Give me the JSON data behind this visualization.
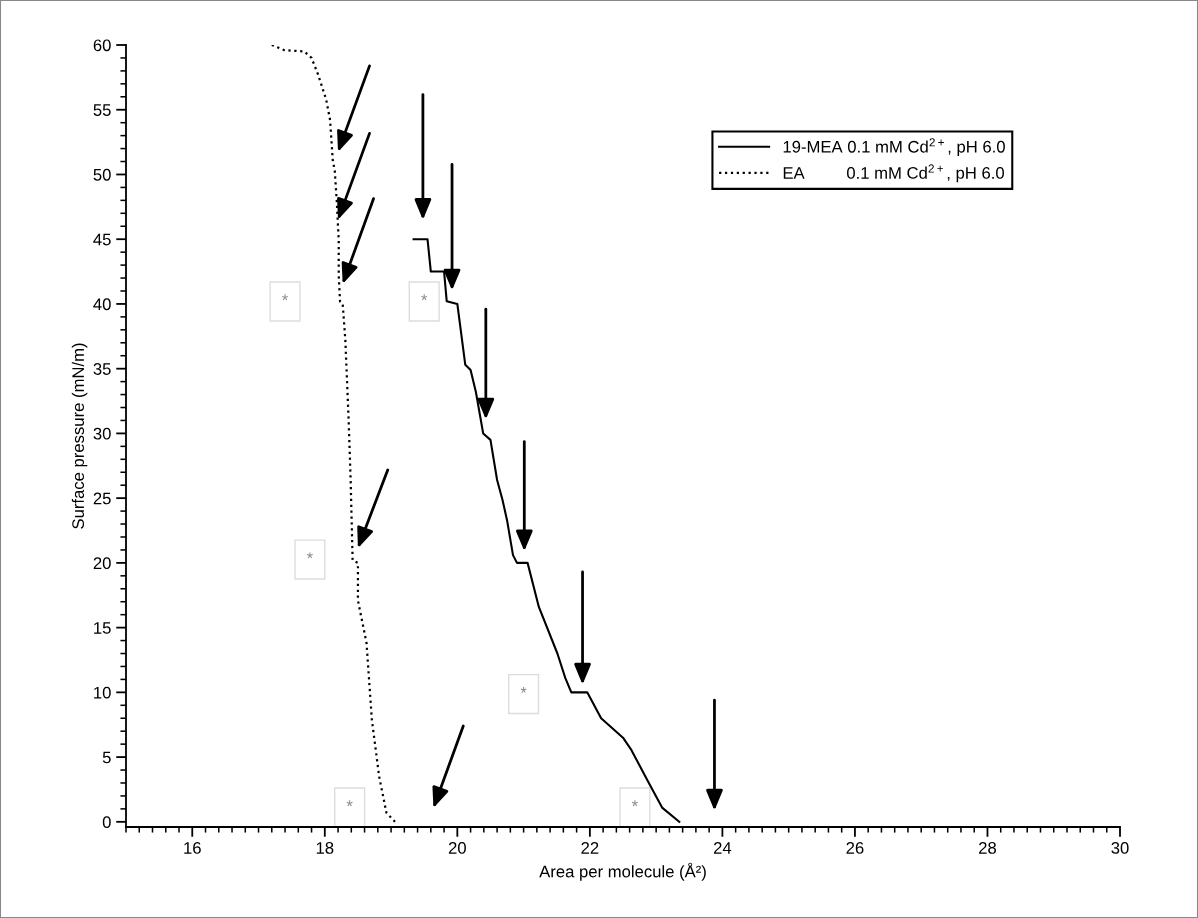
{
  "chart_data": {
    "type": "line",
    "xlabel": "Area per molecule (Å²)",
    "ylabel": "Surface pressure (mN/m)",
    "xlim": [
      15,
      30
    ],
    "xticks": [
      16,
      18,
      20,
      22,
      24,
      26,
      28,
      30
    ],
    "ylim": [
      -0.4,
      60
    ],
    "yticks": [
      0,
      5,
      10,
      15,
      20,
      25,
      30,
      35,
      40,
      45,
      50,
      55,
      60
    ],
    "grid": false,
    "legend": "top right",
    "marker": "none",
    "series": [
      {
        "name": "19-MEA 0.1 mM Cd$^{2+}$, pH 6.0",
        "color": "#000000",
        "line_style": "solid",
        "x": [
          19.34,
          19.55,
          19.6,
          19.8,
          19.84,
          20.0,
          20.12,
          20.2,
          20.28,
          20.39,
          20.5,
          20.6,
          20.68,
          20.75,
          20.84,
          20.9,
          21.06,
          21.23,
          21.51,
          21.63,
          21.72,
          21.96,
          22.17,
          22.5,
          22.62,
          22.87,
          23.09,
          23.35
        ],
        "values": [
          45,
          45,
          42.5,
          42.5,
          40.2,
          40,
          35.3,
          34.9,
          33.2,
          30,
          29.5,
          26.4,
          24.9,
          23.3,
          20.6,
          20,
          20,
          16.6,
          13,
          11.1,
          10,
          10,
          8,
          6.5,
          5.6,
          3.2,
          1.1,
          0
        ]
      },
      {
        "name": "EA         0.1 mM Cd$^{2+}$, pH 6.0",
        "color": "#000000",
        "line_style": "dotted",
        "x": [
          17.2,
          17.39,
          17.69,
          17.8,
          17.9,
          18.02,
          18.08,
          18.12,
          18.15,
          18.18,
          18.21,
          18.21,
          18.23,
          18.27,
          18.31,
          18.36,
          18.39,
          18.42,
          18.5,
          18.5,
          18.63,
          18.71,
          18.82,
          18.93,
          19.06
        ],
        "values": [
          60,
          59.6,
          59.5,
          59,
          57.7,
          55.8,
          54.2,
          51.1,
          50.3,
          48,
          44.9,
          42.2,
          40.2,
          40,
          37.2,
          31,
          26.4,
          20.2,
          20,
          17.1,
          13.8,
          7.9,
          3.5,
          0.7,
          0
        ]
      }
    ],
    "annotations": [
      "*",
      "*",
      "*",
      "*",
      "*",
      "*"
    ]
  }
}
